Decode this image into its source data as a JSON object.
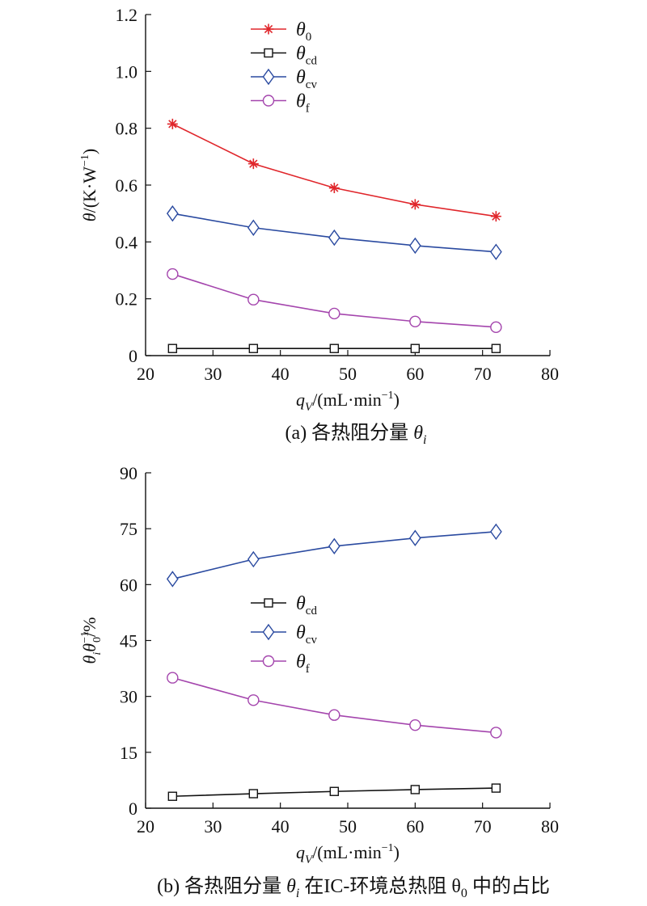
{
  "chart_data": [
    {
      "type": "line",
      "caption_prefix": "(a) 各热阻分量 ",
      "caption_symbol": "θ",
      "caption_sub": "i",
      "caption_suffix": "",
      "xlabel": {
        "sym": "q",
        "sub": "V",
        "text": "/(mL·min",
        "sup": "−1",
        "close": ")"
      },
      "ylabel": {
        "sym": "θ",
        "text": "/(K·W",
        "sup": "−1",
        "close": ")"
      },
      "xlim": [
        20,
        80
      ],
      "ylim": [
        0,
        1.2
      ],
      "xticks": [
        "20",
        "30",
        "40",
        "50",
        "60",
        "70",
        "80"
      ],
      "yticks": [
        "0",
        "0.2",
        "0.4",
        "0.6",
        "0.8",
        "1.0",
        "1.2"
      ],
      "x": [
        24,
        36,
        48,
        60,
        72
      ],
      "legend_position": "top-center",
      "series": [
        {
          "name": "θ",
          "sub": "0",
          "marker": "asterisk",
          "color": "#e0262b",
          "values": [
            0.815,
            0.675,
            0.59,
            0.532,
            0.49
          ]
        },
        {
          "name": "θ",
          "sub": "cd",
          "marker": "square",
          "color": "#111111",
          "values": [
            0.025,
            0.025,
            0.025,
            0.025,
            0.025
          ]
        },
        {
          "name": "θ",
          "sub": "cv",
          "marker": "diamond",
          "color": "#2a4aa0",
          "values": [
            0.5,
            0.45,
            0.415,
            0.387,
            0.365
          ]
        },
        {
          "name": "θ",
          "sub": "f",
          "marker": "circle",
          "color": "#a445ad",
          "values": [
            0.287,
            0.197,
            0.148,
            0.12,
            0.1
          ]
        }
      ]
    },
    {
      "type": "line",
      "caption_prefix": "(b) 各热阻分量 ",
      "caption_symbol": "θ",
      "caption_sub": "i",
      "caption_suffix": " 在IC-环境总热阻 θ",
      "caption_sub2": "0",
      "caption_suffix2": " 中的占比",
      "xlabel": {
        "sym": "q",
        "sub": "V",
        "text": "/(mL·min",
        "sup": "−1",
        "close": ")"
      },
      "ylabel": {
        "sym": "θ",
        "sub": "i",
        "sym2": "θ",
        "sub2": "0",
        "sup2": "−1",
        "text": "/%"
      },
      "xlim": [
        20,
        80
      ],
      "ylim": [
        0,
        90
      ],
      "xticks": [
        "20",
        "30",
        "40",
        "50",
        "60",
        "70",
        "80"
      ],
      "yticks": [
        "0",
        "15",
        "30",
        "45",
        "60",
        "75",
        "90"
      ],
      "x": [
        24,
        36,
        48,
        60,
        72
      ],
      "legend_position": "center",
      "series": [
        {
          "name": "θ",
          "sub": "cd",
          "marker": "square",
          "color": "#111111",
          "values": [
            3.2,
            3.9,
            4.5,
            5.0,
            5.4
          ]
        },
        {
          "name": "θ",
          "sub": "cv",
          "marker": "diamond",
          "color": "#2a4aa0",
          "values": [
            61.5,
            66.8,
            70.3,
            72.5,
            74.2
          ]
        },
        {
          "name": "θ",
          "sub": "f",
          "marker": "circle",
          "color": "#a445ad",
          "values": [
            35.0,
            29.0,
            25.0,
            22.3,
            20.3
          ]
        }
      ]
    }
  ]
}
